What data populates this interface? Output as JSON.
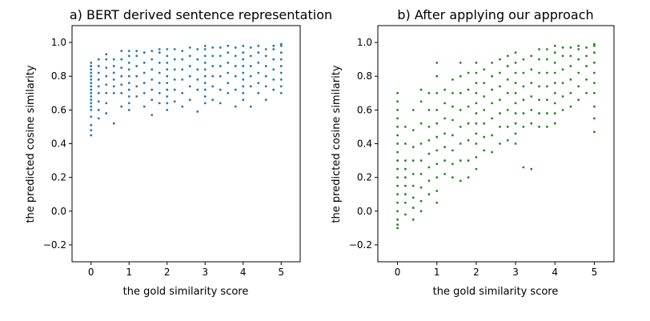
{
  "chart_data": [
    {
      "type": "scatter",
      "title": "a) BERT derived sentence representation",
      "xlabel": "the gold similarity score",
      "ylabel": "the predicted cosine similarity",
      "xlim": [
        -0.5,
        5.5
      ],
      "ylim": [
        -0.3,
        1.1
      ],
      "xticks": [
        0,
        1,
        2,
        3,
        4,
        5
      ],
      "yticks": [
        -0.2,
        0.0,
        0.2,
        0.4,
        0.6,
        0.8,
        1.0
      ],
      "xtick_labels": [
        "0",
        "1",
        "2",
        "3",
        "4",
        "5"
      ],
      "ytick_labels": [
        "−0.2",
        "0.0",
        "0.2",
        "0.4",
        "0.6",
        "0.8",
        "1.0"
      ],
      "color": "#1f77b4",
      "series": [
        {
          "x": 0.0,
          "y": [
            0.45,
            0.48,
            0.51,
            0.56,
            0.6,
            0.62,
            0.64,
            0.66,
            0.68,
            0.7,
            0.72,
            0.74,
            0.76,
            0.78,
            0.8,
            0.82,
            0.84,
            0.86,
            0.88
          ]
        },
        {
          "x": 0.2,
          "y": [
            0.55,
            0.6,
            0.65,
            0.7,
            0.74,
            0.78,
            0.82,
            0.86,
            0.9
          ]
        },
        {
          "x": 0.4,
          "y": [
            0.58,
            0.64,
            0.7,
            0.75,
            0.8,
            0.85,
            0.9,
            0.93
          ]
        },
        {
          "x": 0.6,
          "y": [
            0.52,
            0.7,
            0.74,
            0.78,
            0.82,
            0.86,
            0.9
          ]
        },
        {
          "x": 0.8,
          "y": [
            0.62,
            0.7,
            0.75,
            0.8,
            0.85,
            0.9,
            0.95
          ]
        },
        {
          "x": 1.0,
          "y": [
            0.6,
            0.64,
            0.68,
            0.72,
            0.76,
            0.8,
            0.84,
            0.88,
            0.92,
            0.95
          ]
        },
        {
          "x": 1.2,
          "y": [
            0.68,
            0.74,
            0.8,
            0.86,
            0.92,
            0.95
          ]
        },
        {
          "x": 1.4,
          "y": [
            0.62,
            0.7,
            0.76,
            0.82,
            0.88,
            0.94
          ]
        },
        {
          "x": 1.6,
          "y": [
            0.57,
            0.66,
            0.72,
            0.78,
            0.84,
            0.9,
            0.95
          ]
        },
        {
          "x": 1.8,
          "y": [
            0.64,
            0.7,
            0.76,
            0.82,
            0.88,
            0.94,
            0.96
          ]
        },
        {
          "x": 2.0,
          "y": [
            0.6,
            0.64,
            0.68,
            0.72,
            0.76,
            0.8,
            0.84,
            0.88,
            0.92,
            0.96
          ]
        },
        {
          "x": 2.2,
          "y": [
            0.65,
            0.72,
            0.78,
            0.84,
            0.9,
            0.96
          ]
        },
        {
          "x": 2.4,
          "y": [
            0.62,
            0.7,
            0.78,
            0.84,
            0.9,
            0.95
          ]
        },
        {
          "x": 2.6,
          "y": [
            0.66,
            0.74,
            0.8,
            0.86,
            0.92,
            0.97
          ]
        },
        {
          "x": 2.8,
          "y": [
            0.59,
            0.72,
            0.78,
            0.84,
            0.9,
            0.96
          ]
        },
        {
          "x": 3.0,
          "y": [
            0.64,
            0.68,
            0.72,
            0.76,
            0.8,
            0.84,
            0.88,
            0.92,
            0.96,
            0.98
          ]
        },
        {
          "x": 3.2,
          "y": [
            0.66,
            0.74,
            0.8,
            0.86,
            0.92,
            0.97
          ]
        },
        {
          "x": 3.4,
          "y": [
            0.64,
            0.72,
            0.8,
            0.86,
            0.92,
            0.97
          ]
        },
        {
          "x": 3.6,
          "y": [
            0.7,
            0.76,
            0.82,
            0.88,
            0.94,
            0.98
          ]
        },
        {
          "x": 3.8,
          "y": [
            0.62,
            0.72,
            0.8,
            0.86,
            0.92,
            0.97
          ]
        },
        {
          "x": 4.0,
          "y": [
            0.66,
            0.7,
            0.74,
            0.78,
            0.82,
            0.86,
            0.9,
            0.94,
            0.98
          ]
        },
        {
          "x": 4.2,
          "y": [
            0.62,
            0.74,
            0.8,
            0.86,
            0.92,
            0.97
          ]
        },
        {
          "x": 4.4,
          "y": [
            0.7,
            0.76,
            0.82,
            0.88,
            0.94,
            0.98
          ]
        },
        {
          "x": 4.6,
          "y": [
            0.66,
            0.74,
            0.8,
            0.86,
            0.92,
            0.96
          ]
        },
        {
          "x": 4.8,
          "y": [
            0.72,
            0.78,
            0.84,
            0.9,
            0.96,
            0.98
          ]
        },
        {
          "x": 5.0,
          "y": [
            0.7,
            0.74,
            0.78,
            0.82,
            0.86,
            0.9,
            0.94,
            0.98,
            0.99
          ]
        }
      ]
    },
    {
      "type": "scatter",
      "title": "b) After applying our approach",
      "xlabel": "the gold similarity score",
      "ylabel": "the predicted cosine similarity",
      "xlim": [
        -0.5,
        5.5
      ],
      "ylim": [
        -0.3,
        1.1
      ],
      "xticks": [
        0,
        1,
        2,
        3,
        4,
        5
      ],
      "yticks": [
        -0.2,
        0.0,
        0.2,
        0.4,
        0.6,
        0.8,
        1.0
      ],
      "xtick_labels": [
        "0",
        "1",
        "2",
        "3",
        "4",
        "5"
      ],
      "ytick_labels": [
        "−0.2",
        "0.0",
        "0.2",
        "0.4",
        "0.6",
        "0.8",
        "1.0"
      ],
      "color": "#1a8a1a",
      "series": [
        {
          "x": 0.0,
          "y": [
            -0.1,
            -0.08,
            -0.05,
            0.0,
            0.05,
            0.1,
            0.15,
            0.2,
            0.25,
            0.3,
            0.35,
            0.4,
            0.45,
            0.5,
            0.55,
            0.6,
            0.65,
            0.7
          ]
        },
        {
          "x": 0.2,
          "y": [
            -0.02,
            0.05,
            0.1,
            0.15,
            0.2,
            0.25,
            0.3,
            0.4,
            0.5
          ]
        },
        {
          "x": 0.4,
          "y": [
            -0.05,
            0.02,
            0.08,
            0.15,
            0.22,
            0.3,
            0.38,
            0.48,
            0.6
          ]
        },
        {
          "x": 0.6,
          "y": [
            0.0,
            0.06,
            0.14,
            0.22,
            0.3,
            0.4,
            0.52,
            0.65,
            0.72
          ]
        },
        {
          "x": 0.8,
          "y": [
            0.1,
            0.18,
            0.26,
            0.34,
            0.42,
            0.5,
            0.6,
            0.7
          ]
        },
        {
          "x": 1.0,
          "y": [
            0.05,
            0.12,
            0.2,
            0.28,
            0.36,
            0.44,
            0.52,
            0.6,
            0.7,
            0.8,
            0.88
          ]
        },
        {
          "x": 1.2,
          "y": [
            0.22,
            0.3,
            0.38,
            0.46,
            0.55,
            0.64,
            0.72
          ]
        },
        {
          "x": 1.4,
          "y": [
            0.2,
            0.28,
            0.36,
            0.45,
            0.54,
            0.62,
            0.7,
            0.78
          ]
        },
        {
          "x": 1.6,
          "y": [
            0.18,
            0.3,
            0.4,
            0.5,
            0.6,
            0.7,
            0.8,
            0.88
          ]
        },
        {
          "x": 1.8,
          "y": [
            0.2,
            0.3,
            0.42,
            0.52,
            0.62,
            0.72,
            0.82
          ]
        },
        {
          "x": 2.0,
          "y": [
            0.25,
            0.32,
            0.4,
            0.46,
            0.52,
            0.58,
            0.64,
            0.7,
            0.76,
            0.82,
            0.88
          ]
        },
        {
          "x": 2.2,
          "y": [
            0.36,
            0.44,
            0.52,
            0.6,
            0.68,
            0.76,
            0.84
          ]
        },
        {
          "x": 2.4,
          "y": [
            0.35,
            0.45,
            0.55,
            0.64,
            0.72,
            0.8,
            0.88
          ]
        },
        {
          "x": 2.6,
          "y": [
            0.4,
            0.5,
            0.58,
            0.66,
            0.74,
            0.82,
            0.9
          ]
        },
        {
          "x": 2.8,
          "y": [
            0.42,
            0.5,
            0.6,
            0.7,
            0.78,
            0.86,
            0.92
          ]
        },
        {
          "x": 3.0,
          "y": [
            0.4,
            0.46,
            0.52,
            0.58,
            0.64,
            0.7,
            0.76,
            0.82,
            0.88,
            0.94
          ]
        },
        {
          "x": 3.2,
          "y": [
            0.26,
            0.5,
            0.58,
            0.66,
            0.74,
            0.82,
            0.9
          ]
        },
        {
          "x": 3.4,
          "y": [
            0.25,
            0.52,
            0.6,
            0.68,
            0.76,
            0.84,
            0.92
          ]
        },
        {
          "x": 3.6,
          "y": [
            0.5,
            0.58,
            0.66,
            0.74,
            0.82,
            0.9,
            0.96
          ]
        },
        {
          "x": 3.8,
          "y": [
            0.5,
            0.58,
            0.66,
            0.74,
            0.82,
            0.9,
            0.96
          ]
        },
        {
          "x": 4.0,
          "y": [
            0.52,
            0.58,
            0.64,
            0.7,
            0.76,
            0.82,
            0.88,
            0.94,
            0.98
          ]
        },
        {
          "x": 4.2,
          "y": [
            0.6,
            0.68,
            0.76,
            0.84,
            0.92,
            0.97
          ]
        },
        {
          "x": 4.4,
          "y": [
            0.62,
            0.7,
            0.78,
            0.86,
            0.92,
            0.97
          ]
        },
        {
          "x": 4.6,
          "y": [
            0.66,
            0.74,
            0.82,
            0.9,
            0.96,
            0.98
          ]
        },
        {
          "x": 4.8,
          "y": [
            0.7,
            0.78,
            0.86,
            0.92,
            0.97
          ]
        },
        {
          "x": 5.0,
          "y": [
            0.47,
            0.55,
            0.62,
            0.7,
            0.76,
            0.82,
            0.88,
            0.94,
            0.98,
            0.99
          ]
        }
      ]
    }
  ]
}
